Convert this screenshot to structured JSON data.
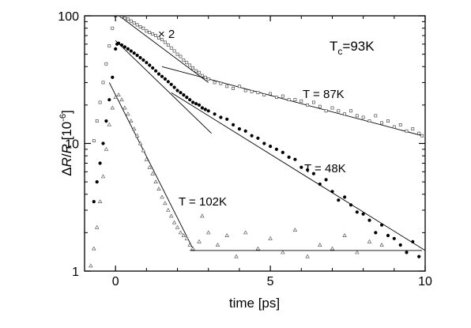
{
  "chart_data": {
    "type": "scatter",
    "title": "",
    "xlabel": "time [ps]",
    "ylabel_pre": "Δ",
    "ylabel_r1": "R",
    "ylabel_slash": "/",
    "ylabel_r2": "R",
    "ylabel_unit": " [10",
    "ylabel_exp": "-6",
    "ylabel_close": "]",
    "xlim": [
      -1,
      10
    ],
    "ylim": [
      1,
      100
    ],
    "yscale": "log",
    "xticks": [
      0,
      5,
      10
    ],
    "xtick_labels": [
      "0",
      "5",
      "10"
    ],
    "yticks": [
      1,
      10,
      100
    ],
    "ytick_labels": [
      "1",
      "10",
      "100"
    ],
    "grid": false,
    "annotations": {
      "tc_main": "T",
      "tc_sub": "c",
      "tc_value": "=93K",
      "scale_factor": "× 2",
      "label_87": "T = 87K",
      "label_48": "T = 48K",
      "label_102": "T = 102K"
    },
    "series": [
      {
        "temperature": "87K",
        "marker": "square",
        "points": [
          [
            -0.7,
            10.5
          ],
          [
            -0.6,
            15
          ],
          [
            -0.5,
            21
          ],
          [
            -0.4,
            30
          ],
          [
            -0.3,
            42
          ],
          [
            -0.2,
            58
          ],
          [
            -0.1,
            80
          ],
          [
            0.0,
            100
          ],
          [
            0.1,
            103
          ],
          [
            0.2,
            99
          ],
          [
            0.3,
            96
          ],
          [
            0.4,
            94
          ],
          [
            0.5,
            91
          ],
          [
            0.6,
            88
          ],
          [
            0.7,
            85
          ],
          [
            0.8,
            82
          ],
          [
            0.9,
            80
          ],
          [
            1.0,
            76
          ],
          [
            1.1,
            74
          ],
          [
            1.2,
            72
          ],
          [
            1.3,
            70
          ],
          [
            1.4,
            67
          ],
          [
            1.5,
            65
          ],
          [
            1.6,
            62
          ],
          [
            1.7,
            59
          ],
          [
            1.8,
            56
          ],
          [
            1.9,
            53
          ],
          [
            2.0,
            50
          ],
          [
            2.1,
            48
          ],
          [
            2.2,
            45
          ],
          [
            2.3,
            43
          ],
          [
            2.4,
            41
          ],
          [
            2.5,
            39
          ],
          [
            2.6,
            37
          ],
          [
            2.7,
            36
          ],
          [
            2.8,
            34
          ],
          [
            2.9,
            33
          ],
          [
            3.0,
            32
          ],
          [
            3.2,
            30
          ],
          [
            3.4,
            29.5
          ],
          [
            3.6,
            28
          ],
          [
            3.8,
            27
          ],
          [
            4.0,
            28
          ],
          [
            4.2,
            26
          ],
          [
            4.4,
            25.5
          ],
          [
            4.6,
            25
          ],
          [
            4.8,
            24
          ],
          [
            5.0,
            24.5
          ],
          [
            5.2,
            23
          ],
          [
            5.4,
            23.5
          ],
          [
            5.6,
            22
          ],
          [
            5.8,
            22
          ],
          [
            6.0,
            21.5
          ],
          [
            6.2,
            20
          ],
          [
            6.4,
            21
          ],
          [
            6.6,
            19.5
          ],
          [
            6.8,
            18
          ],
          [
            7.0,
            19
          ],
          [
            7.2,
            18
          ],
          [
            7.4,
            17
          ],
          [
            7.6,
            18
          ],
          [
            7.8,
            16.5
          ],
          [
            8.0,
            16
          ],
          [
            8.2,
            15
          ],
          [
            8.4,
            16.5
          ],
          [
            8.6,
            14.5
          ],
          [
            8.8,
            15
          ],
          [
            9.0,
            13.5
          ],
          [
            9.2,
            14
          ],
          [
            9.4,
            12.5
          ],
          [
            9.6,
            13
          ],
          [
            9.8,
            12
          ],
          [
            9.9,
            11.5
          ]
        ]
      },
      {
        "temperature": "48K",
        "marker": "circle",
        "points": [
          [
            -0.7,
            3.5
          ],
          [
            -0.6,
            5
          ],
          [
            -0.5,
            7
          ],
          [
            -0.4,
            10
          ],
          [
            -0.3,
            15
          ],
          [
            -0.2,
            22
          ],
          [
            -0.1,
            33
          ],
          [
            0.0,
            55
          ],
          [
            0.05,
            60
          ],
          [
            0.1,
            61
          ],
          [
            0.2,
            59
          ],
          [
            0.3,
            57
          ],
          [
            0.4,
            55
          ],
          [
            0.5,
            53
          ],
          [
            0.6,
            51
          ],
          [
            0.7,
            49
          ],
          [
            0.8,
            47
          ],
          [
            0.9,
            45
          ],
          [
            1.0,
            43
          ],
          [
            1.1,
            41
          ],
          [
            1.2,
            39
          ],
          [
            1.3,
            37
          ],
          [
            1.4,
            35
          ],
          [
            1.5,
            33.5
          ],
          [
            1.6,
            32
          ],
          [
            1.7,
            30.5
          ],
          [
            1.8,
            29
          ],
          [
            1.9,
            27.5
          ],
          [
            2.0,
            26
          ],
          [
            2.1,
            25
          ],
          [
            2.2,
            24
          ],
          [
            2.3,
            23
          ],
          [
            2.4,
            22
          ],
          [
            2.5,
            21
          ],
          [
            2.6,
            20.5
          ],
          [
            2.7,
            20
          ],
          [
            2.8,
            19
          ],
          [
            2.9,
            18.5
          ],
          [
            3.0,
            18
          ],
          [
            3.2,
            17
          ],
          [
            3.4,
            16
          ],
          [
            3.6,
            15.5
          ],
          [
            3.8,
            14
          ],
          [
            4.0,
            13
          ],
          [
            4.2,
            12.5
          ],
          [
            4.4,
            11.5
          ],
          [
            4.6,
            11
          ],
          [
            4.8,
            10
          ],
          [
            5.0,
            9.5
          ],
          [
            5.2,
            9
          ],
          [
            5.4,
            8.5
          ],
          [
            5.6,
            7.8
          ],
          [
            5.8,
            7.5
          ],
          [
            6.0,
            6.5
          ],
          [
            6.2,
            6.2
          ],
          [
            6.4,
            5.8
          ],
          [
            6.6,
            4.8
          ],
          [
            6.8,
            5.2
          ],
          [
            7.0,
            4.2
          ],
          [
            7.2,
            3.6
          ],
          [
            7.4,
            3.8
          ],
          [
            7.6,
            3.3
          ],
          [
            7.8,
            2.9
          ],
          [
            8.0,
            2.8
          ],
          [
            8.2,
            2.5
          ],
          [
            8.4,
            2.0
          ],
          [
            8.6,
            2.3
          ],
          [
            8.8,
            1.9
          ],
          [
            9.0,
            1.8
          ],
          [
            9.2,
            1.6
          ],
          [
            9.4,
            1.4
          ],
          [
            9.6,
            1.7
          ],
          [
            9.8,
            1.3
          ]
        ]
      },
      {
        "temperature": "102K",
        "marker": "triangle",
        "points": [
          [
            -0.8,
            1.1
          ],
          [
            -0.7,
            1.5
          ],
          [
            -0.6,
            2.2
          ],
          [
            -0.5,
            3.5
          ],
          [
            -0.4,
            5.5
          ],
          [
            -0.3,
            9
          ],
          [
            -0.2,
            14
          ],
          [
            -0.1,
            19
          ],
          [
            0.0,
            23
          ],
          [
            0.1,
            24
          ],
          [
            0.2,
            22
          ],
          [
            0.3,
            19
          ],
          [
            0.4,
            17
          ],
          [
            0.5,
            15
          ],
          [
            0.6,
            13
          ],
          [
            0.7,
            11.5
          ],
          [
            0.8,
            10
          ],
          [
            0.9,
            8.8
          ],
          [
            1.0,
            7.5
          ],
          [
            1.1,
            6.5
          ],
          [
            1.2,
            5.8
          ],
          [
            1.3,
            5
          ],
          [
            1.4,
            4.4
          ],
          [
            1.5,
            3.8
          ],
          [
            1.6,
            3.4
          ],
          [
            1.7,
            3.0
          ],
          [
            1.8,
            2.7
          ],
          [
            1.9,
            2.4
          ],
          [
            2.0,
            2.2
          ],
          [
            2.1,
            2.0
          ],
          [
            2.2,
            1.9
          ],
          [
            2.3,
            1.8
          ],
          [
            2.4,
            1.6
          ],
          [
            2.5,
            1.5
          ],
          [
            2.7,
            1.7
          ],
          [
            2.8,
            2.7
          ],
          [
            3.0,
            2.0
          ],
          [
            3.3,
            1.6
          ],
          [
            3.6,
            1.9
          ],
          [
            3.9,
            1.3
          ],
          [
            4.2,
            2.0
          ],
          [
            4.6,
            1.5
          ],
          [
            5.0,
            1.8
          ],
          [
            5.4,
            1.4
          ],
          [
            5.8,
            2.1
          ],
          [
            6.2,
            1.3
          ],
          [
            6.6,
            1.6
          ],
          [
            7.0,
            1.5
          ],
          [
            7.4,
            1.9
          ],
          [
            7.8,
            1.4
          ],
          [
            8.2,
            1.7
          ],
          [
            8.6,
            1.6
          ]
        ]
      }
    ],
    "fit_lines": [
      {
        "temperature": "87K",
        "segment": "fast",
        "x": [
          0.0,
          3.0
        ],
        "y": [
          105,
          30
        ]
      },
      {
        "temperature": "87K",
        "segment": "slow",
        "x": [
          1.5,
          9.9
        ],
        "y": [
          40,
          11.5
        ]
      },
      {
        "temperature": "48K",
        "segment": "fast",
        "x": [
          0.0,
          3.1
        ],
        "y": [
          64,
          12
        ]
      },
      {
        "temperature": "48K",
        "segment": "slow",
        "x": [
          1.8,
          10.0
        ],
        "y": [
          25,
          1.45
        ]
      },
      {
        "temperature": "102K",
        "segment": "fast",
        "x": [
          -0.2,
          2.5
        ],
        "y": [
          30,
          1.5
        ]
      },
      {
        "temperature": "102K",
        "segment": "flat",
        "x": [
          2.4,
          9.9
        ],
        "y": [
          1.45,
          1.45
        ]
      }
    ]
  }
}
